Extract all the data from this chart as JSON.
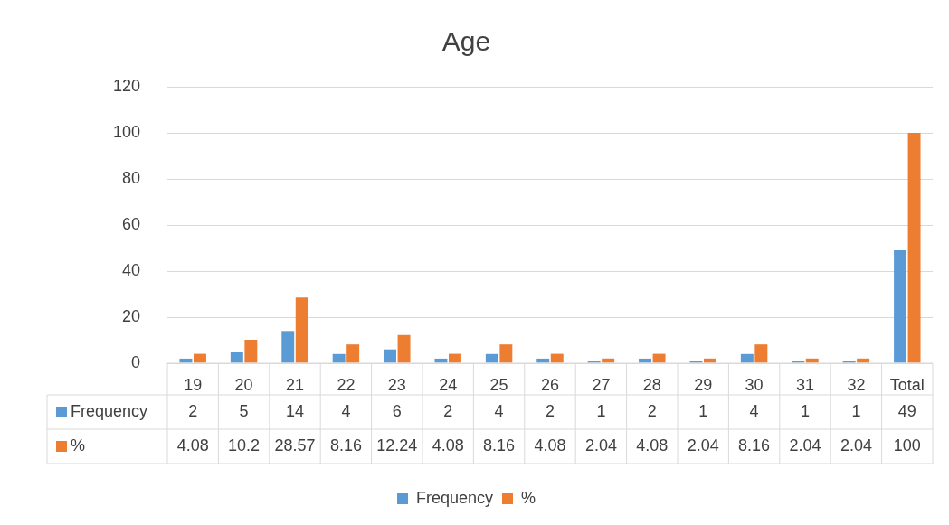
{
  "chart_data": {
    "type": "bar",
    "title": "Age",
    "categories": [
      "19",
      "20",
      "21",
      "22",
      "23",
      "24",
      "25",
      "26",
      "27",
      "28",
      "29",
      "30",
      "31",
      "32",
      "Total"
    ],
    "series": [
      {
        "name": "Frequency",
        "color": "#5b9bd5",
        "values": [
          2,
          5,
          14,
          4,
          6,
          2,
          4,
          2,
          1,
          2,
          1,
          4,
          1,
          1,
          49
        ]
      },
      {
        "name": "%",
        "color": "#ed7d31",
        "values": [
          4.08,
          10.2,
          28.57,
          8.16,
          12.24,
          4.08,
          8.16,
          4.08,
          2.04,
          4.08,
          2.04,
          8.16,
          2.04,
          2.04,
          100
        ]
      }
    ],
    "ylim": [
      0,
      120
    ],
    "yticks": [
      0,
      20,
      40,
      60,
      80,
      100,
      120
    ],
    "grid": "y",
    "legend": "bottom",
    "data_labels": true
  }
}
